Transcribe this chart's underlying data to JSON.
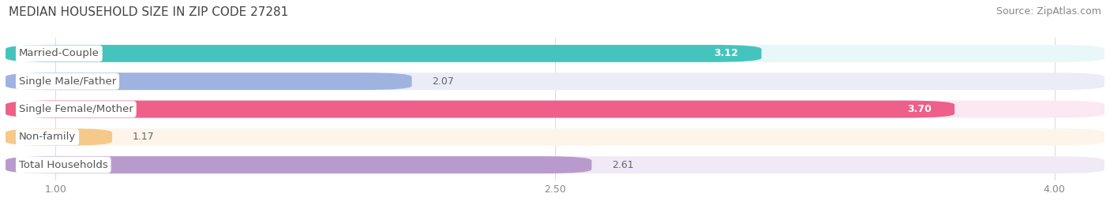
{
  "title": "MEDIAN HOUSEHOLD SIZE IN ZIP CODE 27281",
  "source": "Source: ZipAtlas.com",
  "categories": [
    "Married-Couple",
    "Single Male/Father",
    "Single Female/Mother",
    "Non-family",
    "Total Households"
  ],
  "values": [
    3.12,
    2.07,
    3.7,
    1.17,
    2.61
  ],
  "bar_colors": [
    "#45c4be",
    "#9eb3e0",
    "#ee5f8a",
    "#f5c98a",
    "#b89bcc"
  ],
  "bar_bg_colors": [
    "#e8f7f7",
    "#eaecf7",
    "#fce8f0",
    "#fdf5ea",
    "#f0eaf6"
  ],
  "value_in_bar": [
    true,
    false,
    true,
    false,
    false
  ],
  "value_colors_in": [
    "white",
    "white",
    "white",
    "white",
    "white"
  ],
  "value_colors_out": [
    "#666666",
    "#666666",
    "#666666",
    "#666666",
    "#666666"
  ],
  "xlim_start": 0.85,
  "xlim_end": 4.15,
  "data_min": 1.0,
  "xticks": [
    1.0,
    2.5,
    4.0
  ],
  "value_label_fontsize": 9,
  "title_fontsize": 11,
  "source_fontsize": 9,
  "label_fontsize": 9.5,
  "tick_fontsize": 9,
  "label_text_color": "#555555",
  "bg_color": "#ffffff"
}
